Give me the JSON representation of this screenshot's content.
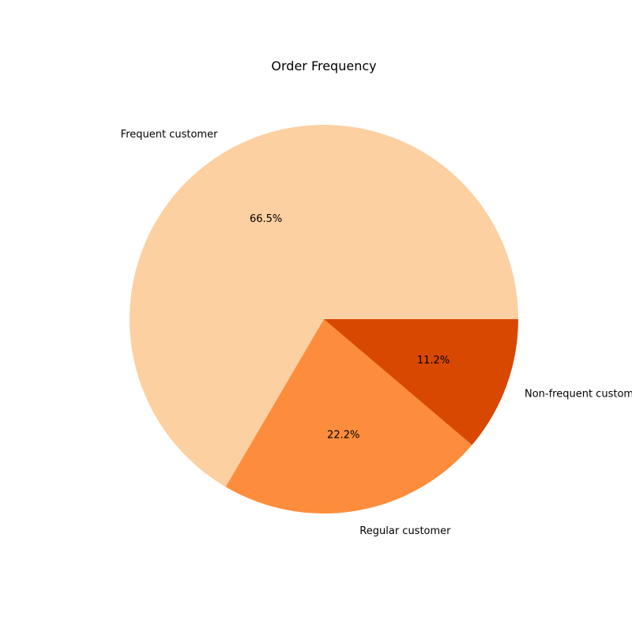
{
  "chart_data": {
    "type": "pie",
    "title": "Order Frequency",
    "categories": [
      "Frequent customer",
      "Regular customer",
      "Non-frequent customer"
    ],
    "values": [
      66.5,
      22.2,
      11.2
    ],
    "value_labels": [
      "66.5%",
      "22.2%",
      "11.2%"
    ],
    "colors": [
      "#fdd0a2",
      "#fd8d3c",
      "#d94801"
    ],
    "start_angle_deg": 0,
    "direction": "counterclockwise"
  }
}
